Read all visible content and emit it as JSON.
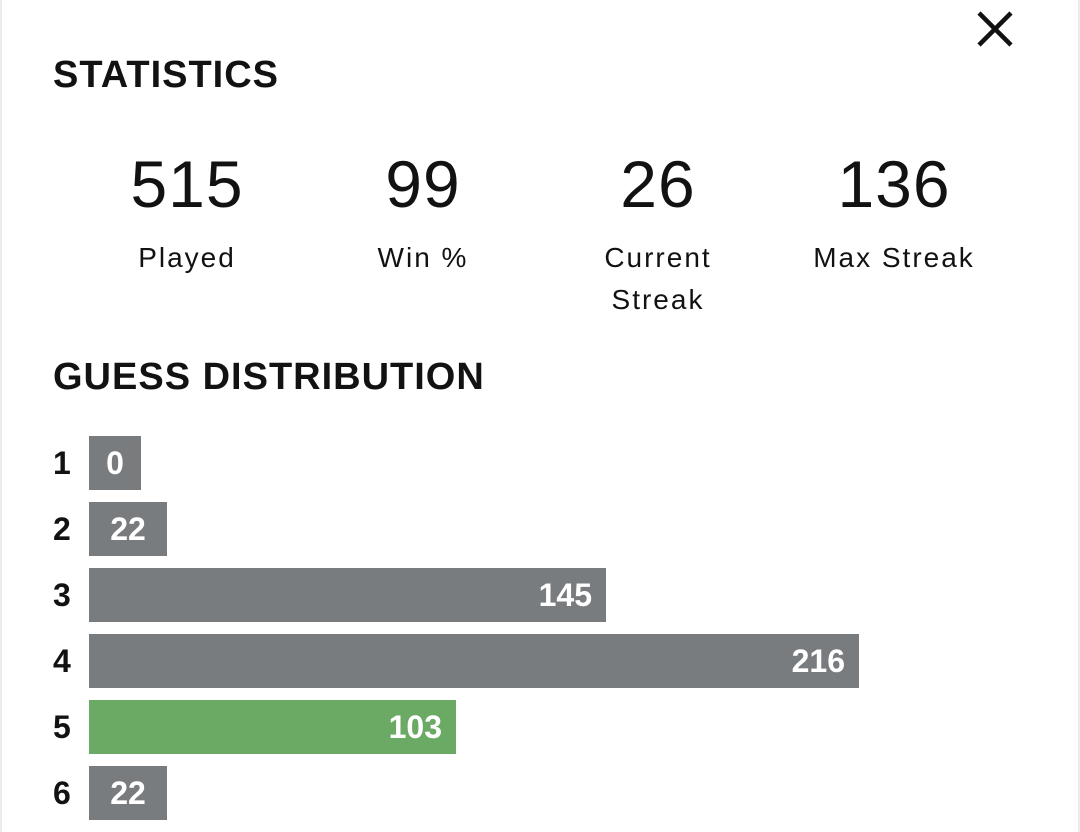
{
  "colors": {
    "bar": "#787c7e",
    "bar_highlight": "#6aaa64",
    "text": "#121212"
  },
  "close_icon": "close-icon",
  "statistics": {
    "title": "STATISTICS",
    "items": [
      {
        "value": "515",
        "label": "Played"
      },
      {
        "value": "99",
        "label": "Win %"
      },
      {
        "value": "26",
        "label": "Current Streak"
      },
      {
        "value": "136",
        "label": "Max Streak"
      }
    ]
  },
  "guess_distribution": {
    "title": "GUESS DISTRIBUTION",
    "max_count": 216,
    "highlighted_guess": "5",
    "rows": [
      {
        "guess": "1",
        "count": "0"
      },
      {
        "guess": "2",
        "count": "22"
      },
      {
        "guess": "3",
        "count": "145"
      },
      {
        "guess": "4",
        "count": "216"
      },
      {
        "guess": "5",
        "count": "103"
      },
      {
        "guess": "6",
        "count": "22"
      }
    ]
  }
}
